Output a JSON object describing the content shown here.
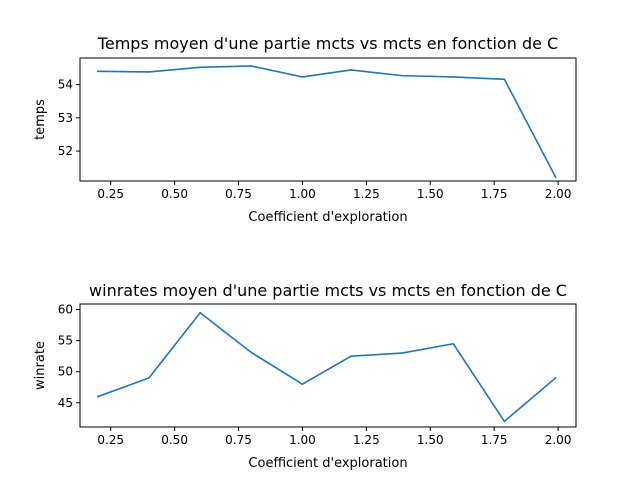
{
  "chart_data": [
    {
      "type": "line",
      "title": "Temps moyen d'une partie mcts vs mcts en fonction de C",
      "xlabel": "Coefficient d'exploration",
      "ylabel": "temps",
      "xlim": [
        0.13,
        2.07
      ],
      "ylim": [
        51.1,
        54.8
      ],
      "xticks": [
        0.25,
        0.5,
        0.75,
        1.0,
        1.25,
        1.5,
        1.75,
        2.0
      ],
      "xtick_labels": [
        "0.25",
        "0.50",
        "0.75",
        "1.00",
        "1.25",
        "1.50",
        "1.75",
        "2.00"
      ],
      "yticks": [
        52,
        53,
        54
      ],
      "ytick_labels": [
        "52",
        "53",
        "54"
      ],
      "grid": false,
      "color": "#1f77b4",
      "series": [
        {
          "x": [
            0.2,
            0.4,
            0.6,
            0.8,
            1.0,
            1.19,
            1.39,
            1.59,
            1.79,
            1.99
          ],
          "y": [
            54.4,
            54.38,
            54.52,
            54.56,
            54.23,
            54.44,
            54.27,
            54.23,
            54.16,
            51.22
          ]
        }
      ]
    },
    {
      "type": "line",
      "title": "winrates moyen d'une partie mcts vs mcts en fonction de C",
      "xlabel": "Coefficient d'exploration",
      "ylabel": "winrate",
      "xlim": [
        0.13,
        2.07
      ],
      "ylim": [
        41.1,
        60.9
      ],
      "xticks": [
        0.25,
        0.5,
        0.75,
        1.0,
        1.25,
        1.5,
        1.75,
        2.0
      ],
      "xtick_labels": [
        "0.25",
        "0.50",
        "0.75",
        "1.00",
        "1.25",
        "1.50",
        "1.75",
        "2.00"
      ],
      "yticks": [
        45,
        50,
        55,
        60
      ],
      "ytick_labels": [
        "45",
        "50",
        "55",
        "60"
      ],
      "grid": false,
      "color": "#1f77b4",
      "series": [
        {
          "x": [
            0.2,
            0.4,
            0.6,
            0.8,
            1.0,
            1.19,
            1.39,
            1.59,
            1.79,
            1.99
          ],
          "y": [
            46.0,
            49.0,
            59.5,
            53.1,
            48.0,
            52.5,
            53.0,
            54.5,
            42.0,
            49.0
          ]
        }
      ]
    }
  ]
}
